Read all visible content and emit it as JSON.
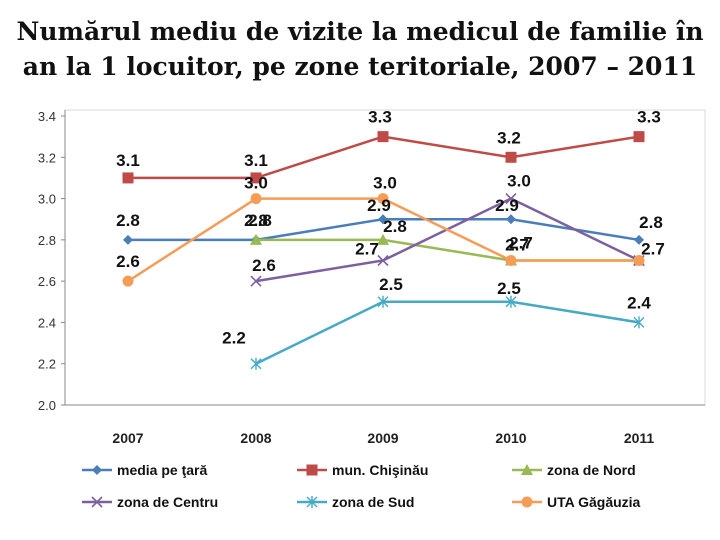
{
  "title_line1": "Numărul mediu de vizite la medicul de familie în",
  "title_line2": "an la 1 locuitor, pe zone teritoriale, 2007 – 2011",
  "chart_data": {
    "type": "line",
    "categories": [
      "2007",
      "2008",
      "2009",
      "2010",
      "2011"
    ],
    "ylim": [
      2.0,
      3.4
    ],
    "yticks": [
      "2.0",
      "2.2",
      "2.4",
      "2.6",
      "2.8",
      "3.0",
      "3.2",
      "3.4"
    ],
    "legend_position": "bottom",
    "series": [
      {
        "name": "media pe ţară",
        "color": "#4a7ebb",
        "marker": "diamond",
        "values": [
          2.8,
          2.8,
          2.9,
          2.9,
          2.8
        ],
        "labels": [
          "2.8",
          "2.8",
          "2.9",
          "2.9",
          "2.8"
        ]
      },
      {
        "name": "mun. Chişinău",
        "color": "#be4b48",
        "marker": "square",
        "values": [
          3.1,
          3.1,
          3.3,
          3.2,
          3.3
        ],
        "labels": [
          "3.1",
          "3.1",
          "3.3",
          "3.2",
          "3.3"
        ]
      },
      {
        "name": "zona de Nord",
        "color": "#98b954",
        "marker": "triangle",
        "values": [
          null,
          2.8,
          2.8,
          2.7,
          2.7
        ],
        "labels": [
          null,
          "2.8",
          "2.8",
          "2.7",
          null
        ]
      },
      {
        "name": "zona de Centru",
        "color": "#7d60a0",
        "marker": "x",
        "values": [
          null,
          2.6,
          2.7,
          3.0,
          2.7
        ],
        "labels": [
          null,
          "2.6",
          "2.7",
          "3.0",
          "2.7"
        ]
      },
      {
        "name": "zona de Sud",
        "color": "#46aac5",
        "marker": "star",
        "values": [
          null,
          2.2,
          2.5,
          2.5,
          2.4
        ],
        "labels": [
          null,
          "2.2",
          "2.5",
          "2.5",
          "2.4"
        ]
      },
      {
        "name": "UTA Găgăuzia",
        "color": "#f59d56",
        "marker": "circle",
        "values": [
          2.6,
          3.0,
          3.0,
          2.7,
          2.7
        ],
        "labels": [
          "2.6",
          "3.0",
          "3.0",
          "2.7",
          null
        ]
      }
    ]
  }
}
